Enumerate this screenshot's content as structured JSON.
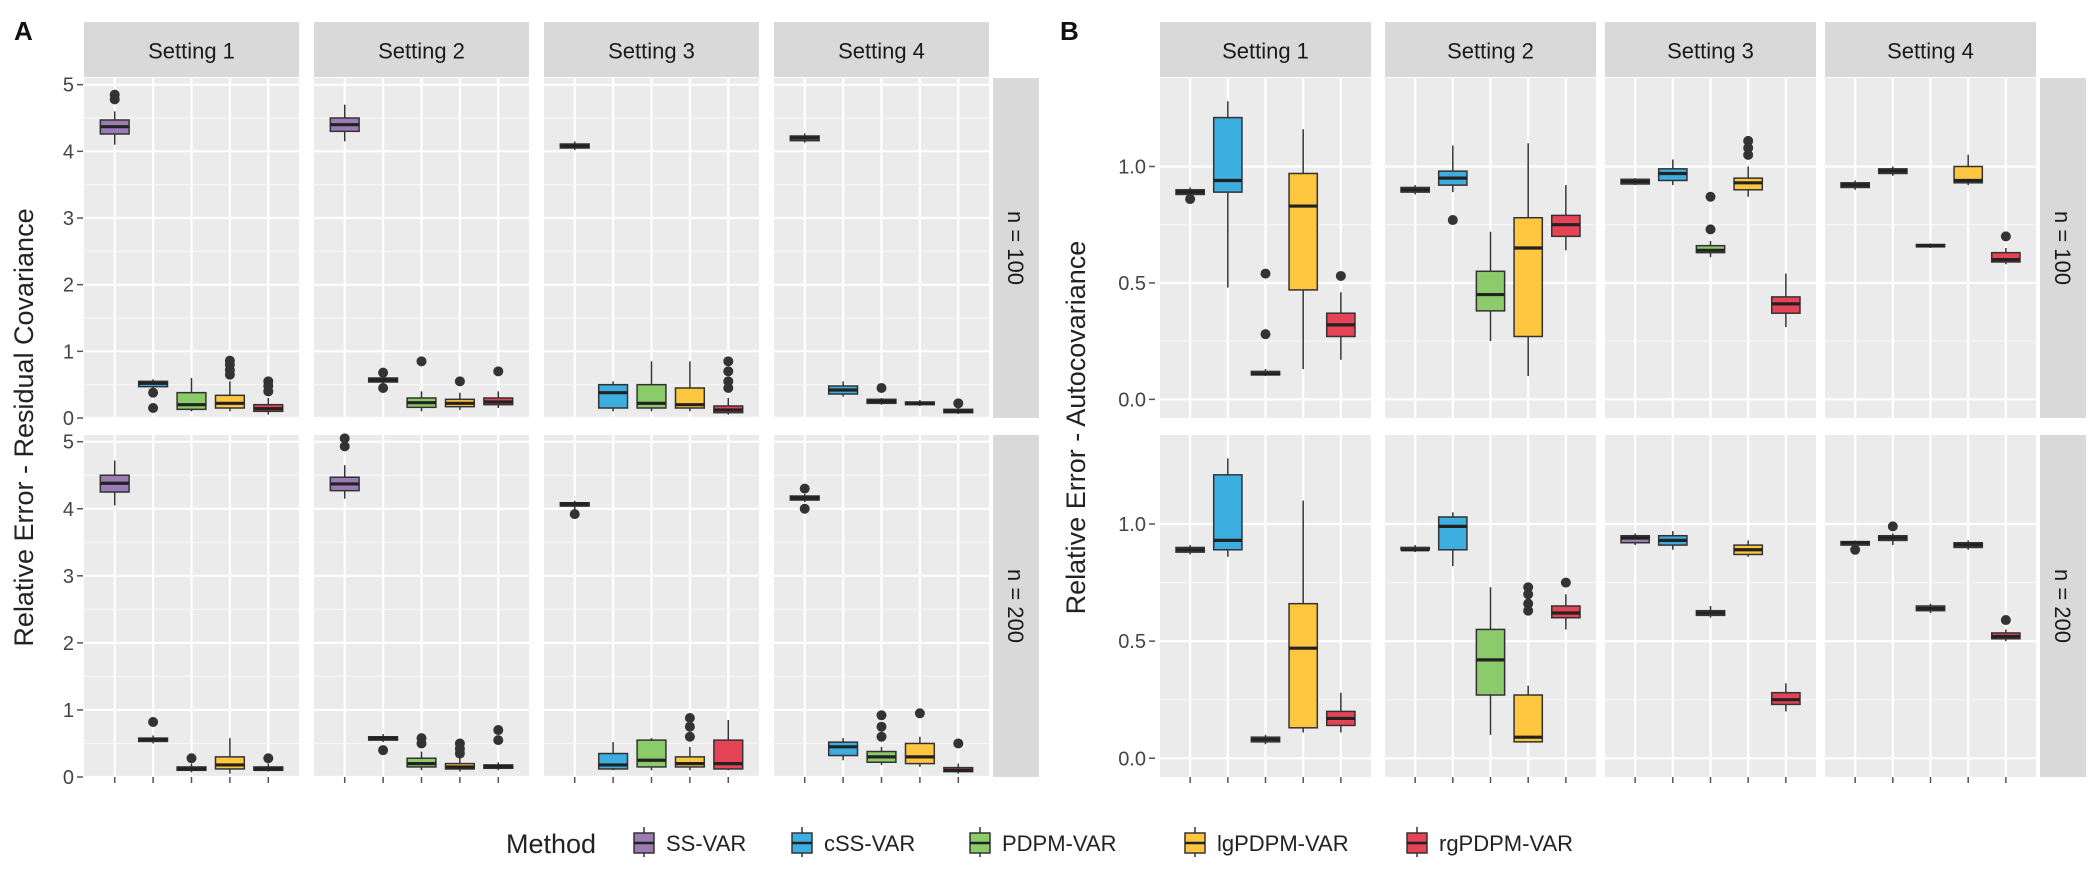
{
  "chart_data": {
    "type": "boxplot",
    "legend": {
      "title": "Method",
      "items": [
        {
          "label": "SS-VAR",
          "color": "#9B7BB4"
        },
        {
          "label": "cSS-VAR",
          "color": "#3DAEE0"
        },
        {
          "label": "PDPM-VAR",
          "color": "#8CCB6A"
        },
        {
          "label": "lgPDPM-VAR",
          "color": "#FFC63F"
        },
        {
          "label": "rgPDPM-VAR",
          "color": "#E64356"
        }
      ]
    },
    "panels": [
      {
        "tag": "A",
        "ylabel": "Relative Error - Residual Covariance",
        "ylim": [
          0,
          5.1
        ],
        "yticks": [
          0,
          1,
          2,
          3,
          4,
          5
        ],
        "columns": [
          "Setting 1",
          "Setting 2",
          "Setting 3",
          "Setting 4"
        ],
        "rows": [
          "n = 100",
          "n = 200"
        ],
        "facets": [
          [
            [
              [
                4.1,
                4.26,
                4.37,
                4.47,
                4.6,
                [
                  4.78,
                  4.85
                ]
              ],
              [
                0.38,
                0.47,
                0.52,
                0.55,
                0.58,
                [
                  0.15,
                  0.38
                ]
              ],
              [
                0.1,
                0.13,
                0.2,
                0.38,
                0.6,
                []
              ],
              [
                0.1,
                0.15,
                0.22,
                0.34,
                0.55,
                [
                  0.65,
                  0.72,
                  0.8,
                  0.86
                ]
              ],
              [
                0.05,
                0.1,
                0.14,
                0.2,
                0.3,
                [
                  0.4,
                  0.48,
                  0.55
                ]
              ]
            ],
            [
              [
                4.15,
                4.3,
                4.4,
                4.5,
                4.7,
                []
              ],
              [
                0.5,
                0.54,
                0.57,
                0.6,
                0.64,
                [
                  0.45,
                  0.68
                ]
              ],
              [
                0.1,
                0.16,
                0.23,
                0.3,
                0.4,
                [
                  0.85
                ]
              ],
              [
                0.12,
                0.17,
                0.22,
                0.28,
                0.38,
                [
                  0.55
                ]
              ],
              [
                0.15,
                0.2,
                0.24,
                0.3,
                0.4,
                [
                  0.7
                ]
              ]
            ],
            [
              [
                4.02,
                4.05,
                4.08,
                4.11,
                4.15,
                []
              ],
              [
                0.1,
                0.15,
                0.38,
                0.5,
                0.55,
                []
              ],
              [
                0.1,
                0.15,
                0.22,
                0.5,
                0.85,
                []
              ],
              [
                0.1,
                0.15,
                0.2,
                0.45,
                0.85,
                []
              ],
              [
                0.05,
                0.08,
                0.12,
                0.18,
                0.3,
                [
                  0.45,
                  0.55,
                  0.7,
                  0.85
                ]
              ]
            ],
            [
              [
                4.13,
                4.16,
                4.2,
                4.23,
                4.27,
                []
              ],
              [
                0.32,
                0.36,
                0.42,
                0.48,
                0.55,
                []
              ],
              [
                0.2,
                0.22,
                0.25,
                0.28,
                0.3,
                [
                  0.45
                ]
              ],
              [
                0.18,
                0.2,
                0.22,
                0.24,
                0.27,
                []
              ],
              [
                0.06,
                0.08,
                0.1,
                0.13,
                0.16,
                [
                  0.22
                ]
              ]
            ]
          ],
          [
            [
              [
                4.05,
                4.25,
                4.38,
                4.5,
                4.72,
                []
              ],
              [
                0.5,
                0.53,
                0.56,
                0.58,
                0.62,
                [
                  0.82
                ]
              ],
              [
                0.07,
                0.1,
                0.12,
                0.15,
                0.2,
                [
                  0.28
                ]
              ],
              [
                0.05,
                0.12,
                0.18,
                0.3,
                0.58,
                []
              ],
              [
                0.08,
                0.1,
                0.12,
                0.15,
                0.2,
                [
                  0.28
                ]
              ]
            ],
            [
              [
                4.15,
                4.27,
                4.37,
                4.47,
                4.65,
                [
                  4.93,
                  5.05
                ]
              ],
              [
                0.52,
                0.55,
                0.58,
                0.6,
                0.64,
                [
                  0.4
                ]
              ],
              [
                0.1,
                0.15,
                0.2,
                0.28,
                0.38,
                [
                  0.5,
                  0.58
                ]
              ],
              [
                0.08,
                0.12,
                0.15,
                0.2,
                0.28,
                [
                  0.35,
                  0.42,
                  0.5
                ]
              ],
              [
                0.1,
                0.13,
                0.16,
                0.18,
                0.22,
                [
                  0.55,
                  0.7
                ]
              ]
            ],
            [
              [
                3.98,
                4.04,
                4.07,
                4.09,
                4.12,
                [
                  3.92
                ]
              ],
              [
                0.1,
                0.12,
                0.18,
                0.35,
                0.52,
                []
              ],
              [
                0.1,
                0.15,
                0.25,
                0.55,
                0.58,
                []
              ],
              [
                0.1,
                0.15,
                0.2,
                0.3,
                0.45,
                [
                  0.6,
                  0.75,
                  0.88
                ]
              ],
              [
                0.1,
                0.12,
                0.2,
                0.55,
                0.85,
                []
              ]
            ],
            [
              [
                4.1,
                4.13,
                4.16,
                4.19,
                4.22,
                [
                  4.0,
                  4.3
                ]
              ],
              [
                0.25,
                0.32,
                0.45,
                0.52,
                0.58,
                []
              ],
              [
                0.18,
                0.22,
                0.3,
                0.38,
                0.45,
                [
                  0.6,
                  0.75,
                  0.92
                ]
              ],
              [
                0.15,
                0.2,
                0.3,
                0.5,
                0.6,
                [
                  0.95
                ]
              ],
              [
                0.05,
                0.08,
                0.1,
                0.14,
                0.2,
                [
                  0.5
                ]
              ]
            ]
          ]
        ]
      },
      {
        "tag": "B",
        "ylabel": "Relative Error - Autocovariance",
        "ylim": [
          -0.08,
          1.38
        ],
        "yticks": [
          0.0,
          0.5,
          1.0
        ],
        "ytick_labels": [
          "0.0",
          "0.5",
          "1.0"
        ],
        "columns": [
          "Setting 1",
          "Setting 2",
          "Setting 3",
          "Setting 4"
        ],
        "rows": [
          "n = 100",
          "n = 200"
        ],
        "facets": [
          [
            [
              [
                0.87,
                0.88,
                0.89,
                0.9,
                0.91,
                [
                  0.86
                ]
              ],
              [
                0.48,
                0.89,
                0.94,
                1.21,
                1.28,
                []
              ],
              [
                0.1,
                0.105,
                0.11,
                0.12,
                0.13,
                [
                  0.28,
                  0.54
                ]
              ],
              [
                0.13,
                0.47,
                0.83,
                0.97,
                1.16,
                []
              ],
              [
                0.17,
                0.27,
                0.32,
                0.37,
                0.46,
                [
                  0.53
                ]
              ]
            ],
            [
              [
                0.88,
                0.89,
                0.9,
                0.91,
                0.92,
                []
              ],
              [
                0.89,
                0.92,
                0.95,
                0.98,
                1.09,
                [
                  0.77
                ]
              ],
              [
                0.25,
                0.38,
                0.45,
                0.55,
                0.72,
                []
              ],
              [
                0.1,
                0.27,
                0.65,
                0.78,
                1.1,
                []
              ],
              [
                0.64,
                0.7,
                0.75,
                0.79,
                0.92,
                []
              ]
            ],
            [
              [
                0.92,
                0.925,
                0.935,
                0.945,
                0.95,
                []
              ],
              [
                0.92,
                0.94,
                0.97,
                0.99,
                1.03,
                []
              ],
              [
                0.61,
                0.63,
                0.64,
                0.66,
                0.68,
                [
                  0.73,
                  0.87
                ]
              ],
              [
                0.87,
                0.9,
                0.93,
                0.95,
                1.0,
                [
                  1.05,
                  1.08,
                  1.11
                ]
              ],
              [
                0.31,
                0.37,
                0.41,
                0.44,
                0.54,
                []
              ]
            ],
            [
              [
                0.9,
                0.91,
                0.92,
                0.93,
                0.94,
                []
              ],
              [
                0.96,
                0.97,
                0.98,
                0.99,
                1.0,
                []
              ],
              [
                0.65,
                0.655,
                0.66,
                0.665,
                0.67,
                []
              ],
              [
                0.92,
                0.93,
                0.94,
                1.0,
                1.05,
                []
              ],
              [
                0.58,
                0.59,
                0.6,
                0.63,
                0.65,
                [
                  0.7
                ]
              ]
            ]
          ],
          [
            [
              [
                0.87,
                0.88,
                0.89,
                0.9,
                0.91,
                []
              ],
              [
                0.86,
                0.89,
                0.93,
                1.21,
                1.28,
                []
              ],
              [
                0.06,
                0.07,
                0.08,
                0.09,
                0.1,
                []
              ],
              [
                0.11,
                0.13,
                0.47,
                0.66,
                1.1,
                []
              ],
              [
                0.11,
                0.14,
                0.17,
                0.2,
                0.28,
                []
              ]
            ],
            [
              [
                0.88,
                0.89,
                0.89,
                0.9,
                0.91,
                []
              ],
              [
                0.82,
                0.89,
                0.99,
                1.03,
                1.05,
                []
              ],
              [
                0.1,
                0.27,
                0.42,
                0.55,
                0.73,
                []
              ],
              [
                0.07,
                0.07,
                0.09,
                0.27,
                0.31,
                [
                  0.63,
                  0.66,
                  0.7,
                  0.73
                ]
              ],
              [
                0.55,
                0.6,
                0.62,
                0.65,
                0.7,
                [
                  0.75
                ]
              ]
            ],
            [
              [
                0.91,
                0.92,
                0.94,
                0.95,
                0.96,
                []
              ],
              [
                0.89,
                0.91,
                0.93,
                0.95,
                0.97,
                []
              ],
              [
                0.6,
                0.61,
                0.62,
                0.63,
                0.65,
                []
              ],
              [
                0.86,
                0.87,
                0.89,
                0.91,
                0.93,
                []
              ],
              [
                0.2,
                0.23,
                0.25,
                0.28,
                0.32,
                []
              ]
            ],
            [
              [
                0.9,
                0.91,
                0.92,
                0.925,
                0.93,
                [
                  0.89
                ]
              ],
              [
                0.91,
                0.93,
                0.94,
                0.95,
                0.96,
                [
                  0.99
                ]
              ],
              [
                0.62,
                0.63,
                0.64,
                0.65,
                0.66,
                []
              ],
              [
                0.89,
                0.9,
                0.91,
                0.92,
                0.93,
                []
              ],
              [
                0.5,
                0.51,
                0.52,
                0.535,
                0.55,
                [
                  0.59
                ]
              ]
            ]
          ]
        ]
      }
    ]
  }
}
